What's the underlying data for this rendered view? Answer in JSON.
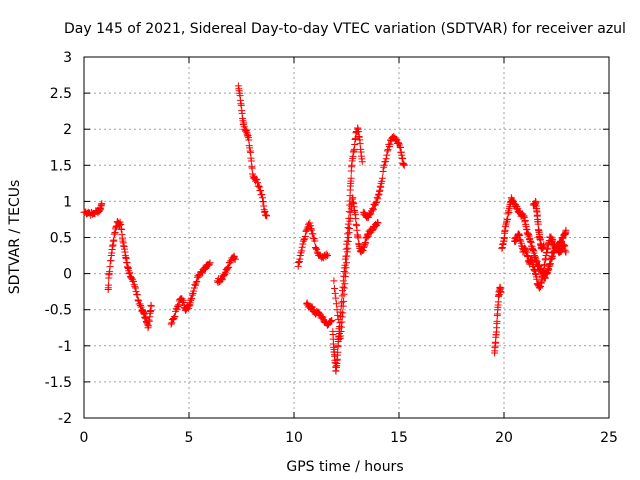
{
  "chart_data": {
    "type": "scatter",
    "title": "Day 145 of 2021, Sidereal Day-to-day VTEC variation (SDTVAR) for receiver azul",
    "xlabel": "GPS time / hours",
    "ylabel": "SDTVAR / TECUs",
    "xlim": [
      0,
      25
    ],
    "ylim": [
      -2,
      3
    ],
    "grid": true,
    "marker": "+",
    "color": "#ff0000",
    "x_ticks": [
      0,
      5,
      10,
      15,
      20,
      25
    ],
    "x_tick_labels": [
      "0",
      "5",
      "10",
      "15",
      "20",
      "25"
    ],
    "y_ticks": [
      -2,
      -1.5,
      -1,
      -0.5,
      0,
      0.5,
      1,
      1.5,
      2,
      2.5,
      3
    ],
    "y_tick_labels": [
      "-2",
      "-1.5",
      "-1",
      "-0.5",
      "0",
      "0.5",
      "1",
      "1.5",
      "2",
      "2.5",
      "3"
    ],
    "series": [
      {
        "name": "SDTVAR",
        "tracks": [
          [
            [
              0.0,
              0.85
            ],
            [
              0.2,
              0.85
            ],
            [
              0.4,
              0.82
            ],
            [
              0.6,
              0.86
            ],
            [
              0.75,
              0.88
            ],
            [
              0.85,
              0.97
            ]
          ],
          [
            [
              1.15,
              -0.22
            ],
            [
              1.2,
              0.0
            ],
            [
              1.3,
              0.25
            ],
            [
              1.4,
              0.45
            ],
            [
              1.5,
              0.62
            ],
            [
              1.6,
              0.72
            ],
            [
              1.75,
              0.68
            ],
            [
              1.85,
              0.45
            ],
            [
              1.95,
              0.3
            ],
            [
              2.05,
              0.15
            ],
            [
              2.15,
              0.0
            ],
            [
              2.3,
              -0.08
            ],
            [
              2.45,
              -0.2
            ],
            [
              2.6,
              -0.38
            ],
            [
              2.75,
              -0.52
            ],
            [
              2.85,
              -0.55
            ],
            [
              2.95,
              -0.62
            ],
            [
              3.05,
              -0.75
            ],
            [
              3.15,
              -0.55
            ],
            [
              3.2,
              -0.45
            ]
          ],
          [
            [
              4.15,
              -0.7
            ],
            [
              4.3,
              -0.6
            ],
            [
              4.45,
              -0.45
            ],
            [
              4.6,
              -0.35
            ],
            [
              4.75,
              -0.4
            ],
            [
              4.85,
              -0.5
            ],
            [
              5.0,
              -0.45
            ],
            [
              5.1,
              -0.35
            ],
            [
              5.25,
              -0.2
            ],
            [
              5.4,
              -0.05
            ],
            [
              5.55,
              0.02
            ],
            [
              5.7,
              0.05
            ],
            [
              5.85,
              0.1
            ],
            [
              6.0,
              0.15
            ]
          ],
          [
            [
              6.35,
              -0.1
            ],
            [
              6.5,
              -0.08
            ],
            [
              6.65,
              -0.03
            ],
            [
              6.8,
              0.05
            ],
            [
              6.95,
              0.15
            ],
            [
              7.1,
              0.22
            ],
            [
              7.2,
              0.2
            ]
          ],
          [
            [
              7.35,
              2.6
            ],
            [
              7.45,
              2.4
            ],
            [
              7.55,
              2.15
            ],
            [
              7.65,
              2.0
            ],
            [
              7.75,
              1.95
            ],
            [
              7.85,
              1.85
            ],
            [
              7.95,
              1.6
            ],
            [
              8.05,
              1.35
            ],
            [
              8.2,
              1.3
            ],
            [
              8.35,
              1.2
            ],
            [
              8.5,
              1.05
            ],
            [
              8.6,
              0.85
            ],
            [
              8.7,
              0.8
            ]
          ],
          [
            [
              10.2,
              0.1
            ],
            [
              10.3,
              0.25
            ],
            [
              10.45,
              0.45
            ],
            [
              10.6,
              0.6
            ],
            [
              10.75,
              0.7
            ],
            [
              10.9,
              0.55
            ],
            [
              11.05,
              0.35
            ],
            [
              11.2,
              0.25
            ],
            [
              11.4,
              0.22
            ],
            [
              11.6,
              0.25
            ]
          ],
          [
            [
              10.6,
              -0.42
            ],
            [
              10.75,
              -0.45
            ],
            [
              10.9,
              -0.5
            ],
            [
              11.05,
              -0.55
            ],
            [
              11.2,
              -0.55
            ],
            [
              11.35,
              -0.62
            ],
            [
              11.5,
              -0.68
            ],
            [
              11.65,
              -0.7
            ],
            [
              11.8,
              -0.65
            ]
          ],
          [
            [
              11.85,
              -0.8
            ],
            [
              11.9,
              -1.05
            ],
            [
              11.95,
              -1.2
            ],
            [
              12.0,
              -1.35
            ],
            [
              12.05,
              -1.2
            ],
            [
              12.1,
              -1.0
            ],
            [
              12.15,
              -0.8
            ],
            [
              12.25,
              -0.45
            ],
            [
              12.35,
              -0.1
            ],
            [
              12.45,
              0.2
            ],
            [
              12.55,
              0.55
            ],
            [
              12.65,
              0.95
            ],
            [
              12.7,
              1.25
            ],
            [
              12.75,
              1.5
            ],
            [
              12.85,
              1.7
            ],
            [
              12.95,
              1.95
            ],
            [
              13.05,
              2.0
            ],
            [
              13.15,
              1.8
            ],
            [
              13.25,
              1.55
            ]
          ],
          [
            [
              11.9,
              -0.1
            ],
            [
              12.05,
              -0.5
            ],
            [
              12.2,
              -0.9
            ],
            [
              12.3,
              -0.6
            ],
            [
              12.4,
              -0.2
            ],
            [
              12.5,
              0.15
            ],
            [
              12.6,
              0.5
            ],
            [
              12.7,
              0.85
            ],
            [
              12.8,
              1.05
            ],
            [
              12.9,
              0.85
            ],
            [
              13.0,
              0.6
            ],
            [
              13.1,
              0.4
            ],
            [
              13.2,
              0.3
            ],
            [
              13.35,
              0.38
            ],
            [
              13.45,
              0.5
            ],
            [
              13.55,
              0.55
            ],
            [
              13.7,
              0.6
            ],
            [
              13.85,
              0.65
            ],
            [
              14.0,
              0.7
            ]
          ],
          [
            [
              13.3,
              0.85
            ],
            [
              13.45,
              0.78
            ],
            [
              13.6,
              0.82
            ],
            [
              13.75,
              0.9
            ],
            [
              13.9,
              0.98
            ],
            [
              14.05,
              1.1
            ],
            [
              14.15,
              1.25
            ],
            [
              14.3,
              1.5
            ],
            [
              14.45,
              1.7
            ],
            [
              14.6,
              1.85
            ],
            [
              14.75,
              1.9
            ],
            [
              14.9,
              1.85
            ],
            [
              15.05,
              1.75
            ],
            [
              15.15,
              1.6
            ],
            [
              15.25,
              1.5
            ]
          ],
          [
            [
              19.55,
              -1.1
            ],
            [
              19.6,
              -0.95
            ],
            [
              19.65,
              -0.75
            ],
            [
              19.7,
              -0.5
            ],
            [
              19.75,
              -0.3
            ],
            [
              19.8,
              -0.2
            ],
            [
              19.85,
              -0.25
            ]
          ],
          [
            [
              19.9,
              0.35
            ],
            [
              20.0,
              0.45
            ],
            [
              20.05,
              0.6
            ],
            [
              20.15,
              0.75
            ],
            [
              20.25,
              0.9
            ],
            [
              20.35,
              1.05
            ],
            [
              20.45,
              1.0
            ],
            [
              20.55,
              0.95
            ],
            [
              20.65,
              0.9
            ],
            [
              20.75,
              0.85
            ],
            [
              20.85,
              0.8
            ],
            [
              20.95,
              0.8
            ],
            [
              21.05,
              0.65
            ],
            [
              21.15,
              0.55
            ],
            [
              21.25,
              0.45
            ],
            [
              21.35,
              0.35
            ],
            [
              21.45,
              0.25
            ],
            [
              21.55,
              0.15
            ],
            [
              21.65,
              0.1
            ],
            [
              21.75,
              0.05
            ],
            [
              21.85,
              0.0
            ],
            [
              21.95,
              -0.05
            ],
            [
              22.05,
              0.0
            ],
            [
              22.15,
              0.1
            ],
            [
              22.25,
              0.2
            ],
            [
              22.35,
              0.3
            ],
            [
              22.45,
              0.35
            ],
            [
              22.55,
              0.35
            ],
            [
              22.65,
              0.3
            ],
            [
              22.75,
              0.35
            ],
            [
              22.85,
              0.4
            ],
            [
              22.95,
              0.3
            ]
          ],
          [
            [
              20.5,
              0.45
            ],
            [
              20.6,
              0.5
            ],
            [
              20.7,
              0.55
            ],
            [
              20.8,
              0.45
            ],
            [
              20.9,
              0.3
            ],
            [
              21.0,
              0.35
            ],
            [
              21.1,
              0.25
            ],
            [
              21.2,
              0.15
            ],
            [
              21.3,
              0.2
            ],
            [
              21.4,
              0.1
            ],
            [
              21.5,
              0.0
            ],
            [
              21.6,
              -0.15
            ],
            [
              21.7,
              -0.2
            ],
            [
              21.8,
              -0.1
            ],
            [
              21.9,
              0.05
            ],
            [
              22.0,
              0.25
            ],
            [
              22.1,
              0.4
            ],
            [
              22.2,
              0.5
            ],
            [
              22.3,
              0.45
            ],
            [
              22.4,
              0.4
            ],
            [
              22.5,
              0.35
            ],
            [
              22.6,
              0.4
            ],
            [
              22.7,
              0.45
            ],
            [
              22.8,
              0.5
            ],
            [
              22.9,
              0.55
            ],
            [
              22.95,
              0.6
            ]
          ],
          [
            [
              21.4,
              0.95
            ],
            [
              21.5,
              1.0
            ],
            [
              21.55,
              0.9
            ],
            [
              21.6,
              0.75
            ],
            [
              21.65,
              0.6
            ],
            [
              21.7,
              0.5
            ],
            [
              21.75,
              0.4
            ],
            [
              21.8,
              0.35
            ],
            [
              21.9,
              0.4
            ]
          ]
        ]
      }
    ]
  }
}
